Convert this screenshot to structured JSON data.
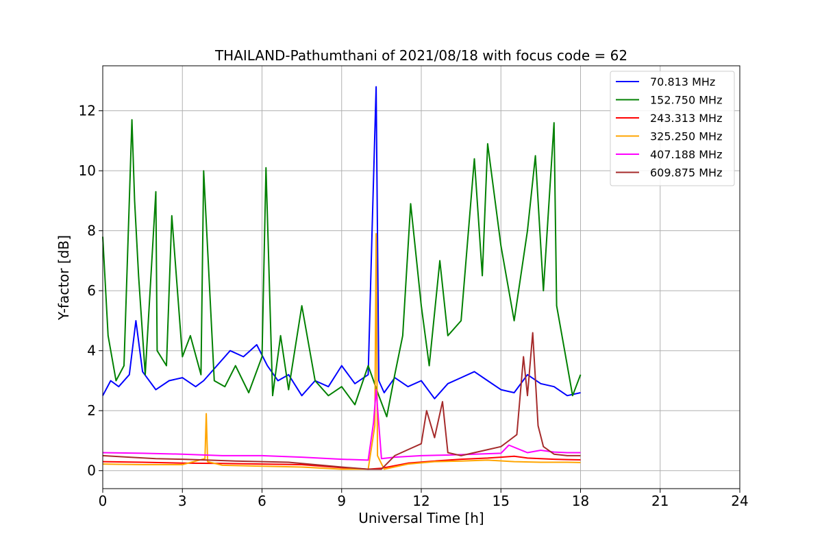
{
  "chart_data": {
    "type": "line",
    "title": "THAILAND-Pathumthani of 2021/08/18 with focus code = 62",
    "xlabel": "Universal Time [h]",
    "ylabel": "Y-factor [dB]",
    "xlim": [
      0,
      24
    ],
    "ylim": [
      -0.6,
      13.5
    ],
    "xticks": [
      0,
      3,
      6,
      9,
      12,
      15,
      18,
      21,
      24
    ],
    "xtick_labels": [
      "0",
      "3",
      "6",
      "9",
      "12",
      "15",
      "18",
      "21",
      "24"
    ],
    "yticks": [
      0,
      2,
      4,
      6,
      8,
      10,
      12
    ],
    "ytick_labels": [
      "0",
      "2",
      "4",
      "6",
      "8",
      "10",
      "12"
    ],
    "grid": true,
    "legend_position": "top-right",
    "series": [
      {
        "name": "70.813 MHz",
        "legend_label": " 70.813 MHz",
        "color": "#0000ff",
        "x": [
          0,
          0.3,
          0.6,
          1.0,
          1.25,
          1.5,
          2.0,
          2.5,
          3.0,
          3.5,
          3.8,
          4.2,
          4.8,
          5.3,
          5.8,
          6.2,
          6.6,
          7.0,
          7.5,
          8.0,
          8.5,
          9.0,
          9.5,
          10.0,
          10.15,
          10.3,
          10.4,
          10.6,
          11.0,
          11.5,
          12.0,
          12.5,
          13.0,
          13.5,
          14.0,
          14.5,
          15.0,
          15.5,
          16.0,
          16.5,
          17.0,
          17.5,
          18.0
        ],
        "y": [
          2.5,
          3.0,
          2.8,
          3.2,
          5.0,
          3.3,
          2.7,
          3.0,
          3.1,
          2.8,
          3.0,
          3.4,
          4.0,
          3.8,
          4.2,
          3.5,
          3.0,
          3.2,
          2.5,
          3.0,
          2.8,
          3.5,
          2.9,
          3.2,
          8.1,
          12.8,
          3.0,
          2.6,
          3.1,
          2.8,
          3.0,
          2.4,
          2.9,
          3.1,
          3.3,
          3.0,
          2.7,
          2.6,
          3.2,
          2.9,
          2.8,
          2.5,
          2.6
        ]
      },
      {
        "name": "152.750 MHz",
        "legend_label": "152.750 MHz",
        "color": "#008000",
        "x": [
          0,
          0.2,
          0.5,
          0.8,
          1.1,
          1.2,
          1.35,
          1.6,
          2.0,
          2.05,
          2.4,
          2.6,
          3.0,
          3.3,
          3.7,
          3.8,
          4.2,
          4.6,
          5.0,
          5.5,
          6.0,
          6.15,
          6.4,
          6.7,
          7.0,
          7.5,
          8.0,
          8.5,
          9.0,
          9.5,
          10.0,
          10.2,
          10.4,
          10.7,
          11.0,
          11.3,
          11.6,
          12.0,
          12.3,
          12.7,
          13.0,
          13.5,
          14.0,
          14.3,
          14.5,
          15.0,
          15.5,
          16.0,
          16.3,
          16.6,
          17.0,
          17.1,
          17.4,
          17.7,
          18.0
        ],
        "y": [
          7.8,
          4.5,
          3.0,
          3.5,
          11.7,
          9.0,
          6.5,
          3.2,
          9.3,
          4.0,
          3.5,
          8.5,
          3.8,
          4.5,
          3.2,
          10.0,
          3.0,
          2.8,
          3.5,
          2.6,
          3.8,
          10.1,
          2.5,
          4.5,
          2.7,
          5.5,
          3.0,
          2.5,
          2.8,
          2.2,
          3.5,
          3.0,
          2.5,
          1.8,
          3.2,
          4.5,
          8.9,
          5.5,
          3.5,
          7.0,
          4.5,
          5.0,
          10.4,
          6.5,
          10.9,
          7.5,
          5.0,
          8.0,
          10.5,
          6.0,
          11.6,
          5.5,
          4.0,
          2.5,
          3.2
        ]
      },
      {
        "name": "243.313 MHz",
        "legend_label": "243.313 MHz",
        "color": "#ff0000",
        "x": [
          0,
          1.5,
          3.0,
          4.5,
          6.0,
          7.5,
          9.0,
          10.0,
          10.5,
          11.5,
          12.5,
          13.5,
          14.5,
          15.0,
          15.5,
          16.0,
          16.5,
          17.0,
          17.5,
          18.0
        ],
        "y": [
          0.3,
          0.28,
          0.25,
          0.24,
          0.22,
          0.2,
          0.1,
          0.05,
          0.08,
          0.25,
          0.32,
          0.38,
          0.42,
          0.45,
          0.48,
          0.42,
          0.4,
          0.38,
          0.37,
          0.36
        ]
      },
      {
        "name": "325.250 MHz",
        "legend_label": "325.250 MHz",
        "color": "#ffa500",
        "x": [
          0,
          1.5,
          3.0,
          3.85,
          3.9,
          3.95,
          4.5,
          6.0,
          7.5,
          9.0,
          10.0,
          10.25,
          10.3,
          10.35,
          10.6,
          11.5,
          12.5,
          13.5,
          14.5,
          15.5,
          16.5,
          17.5,
          18.0
        ],
        "y": [
          0.22,
          0.2,
          0.2,
          0.4,
          1.9,
          0.3,
          0.18,
          0.15,
          0.12,
          0.05,
          0.05,
          1.5,
          7.9,
          0.5,
          0.05,
          0.22,
          0.3,
          0.32,
          0.35,
          0.3,
          0.28,
          0.28,
          0.27
        ]
      },
      {
        "name": "407.188 MHz",
        "legend_label": "407.188 MHz",
        "color": "#ff00ff",
        "x": [
          0,
          1.5,
          3.0,
          4.5,
          6.0,
          7.5,
          9.0,
          10.0,
          10.2,
          10.3,
          10.5,
          11.0,
          12.0,
          13.0,
          14.0,
          15.0,
          15.3,
          16.0,
          16.5,
          17.0,
          17.5,
          18.0
        ],
        "y": [
          0.6,
          0.58,
          0.55,
          0.5,
          0.5,
          0.45,
          0.38,
          0.35,
          1.6,
          2.7,
          0.4,
          0.45,
          0.5,
          0.52,
          0.55,
          0.58,
          0.85,
          0.6,
          0.68,
          0.62,
          0.6,
          0.6
        ]
      },
      {
        "name": "609.875 MHz",
        "legend_label": "609.875 MHz",
        "color": "#a52a2a",
        "x": [
          0,
          1.0,
          2.0,
          3.0,
          4.0,
          5.0,
          6.0,
          7.0,
          8.0,
          9.0,
          10.0,
          10.5,
          11.0,
          11.5,
          12.0,
          12.2,
          12.5,
          12.8,
          13.0,
          13.5,
          14.0,
          14.5,
          15.0,
          15.3,
          15.6,
          15.85,
          16.0,
          16.2,
          16.4,
          16.6,
          17.0,
          17.5,
          18.0
        ],
        "y": [
          0.5,
          0.45,
          0.4,
          0.38,
          0.35,
          0.32,
          0.3,
          0.28,
          0.2,
          0.12,
          0.05,
          0.05,
          0.5,
          0.7,
          0.9,
          2.0,
          1.1,
          2.3,
          0.6,
          0.5,
          0.6,
          0.7,
          0.8,
          1.0,
          1.2,
          3.8,
          2.5,
          4.6,
          1.5,
          0.8,
          0.55,
          0.5,
          0.5
        ]
      }
    ]
  }
}
